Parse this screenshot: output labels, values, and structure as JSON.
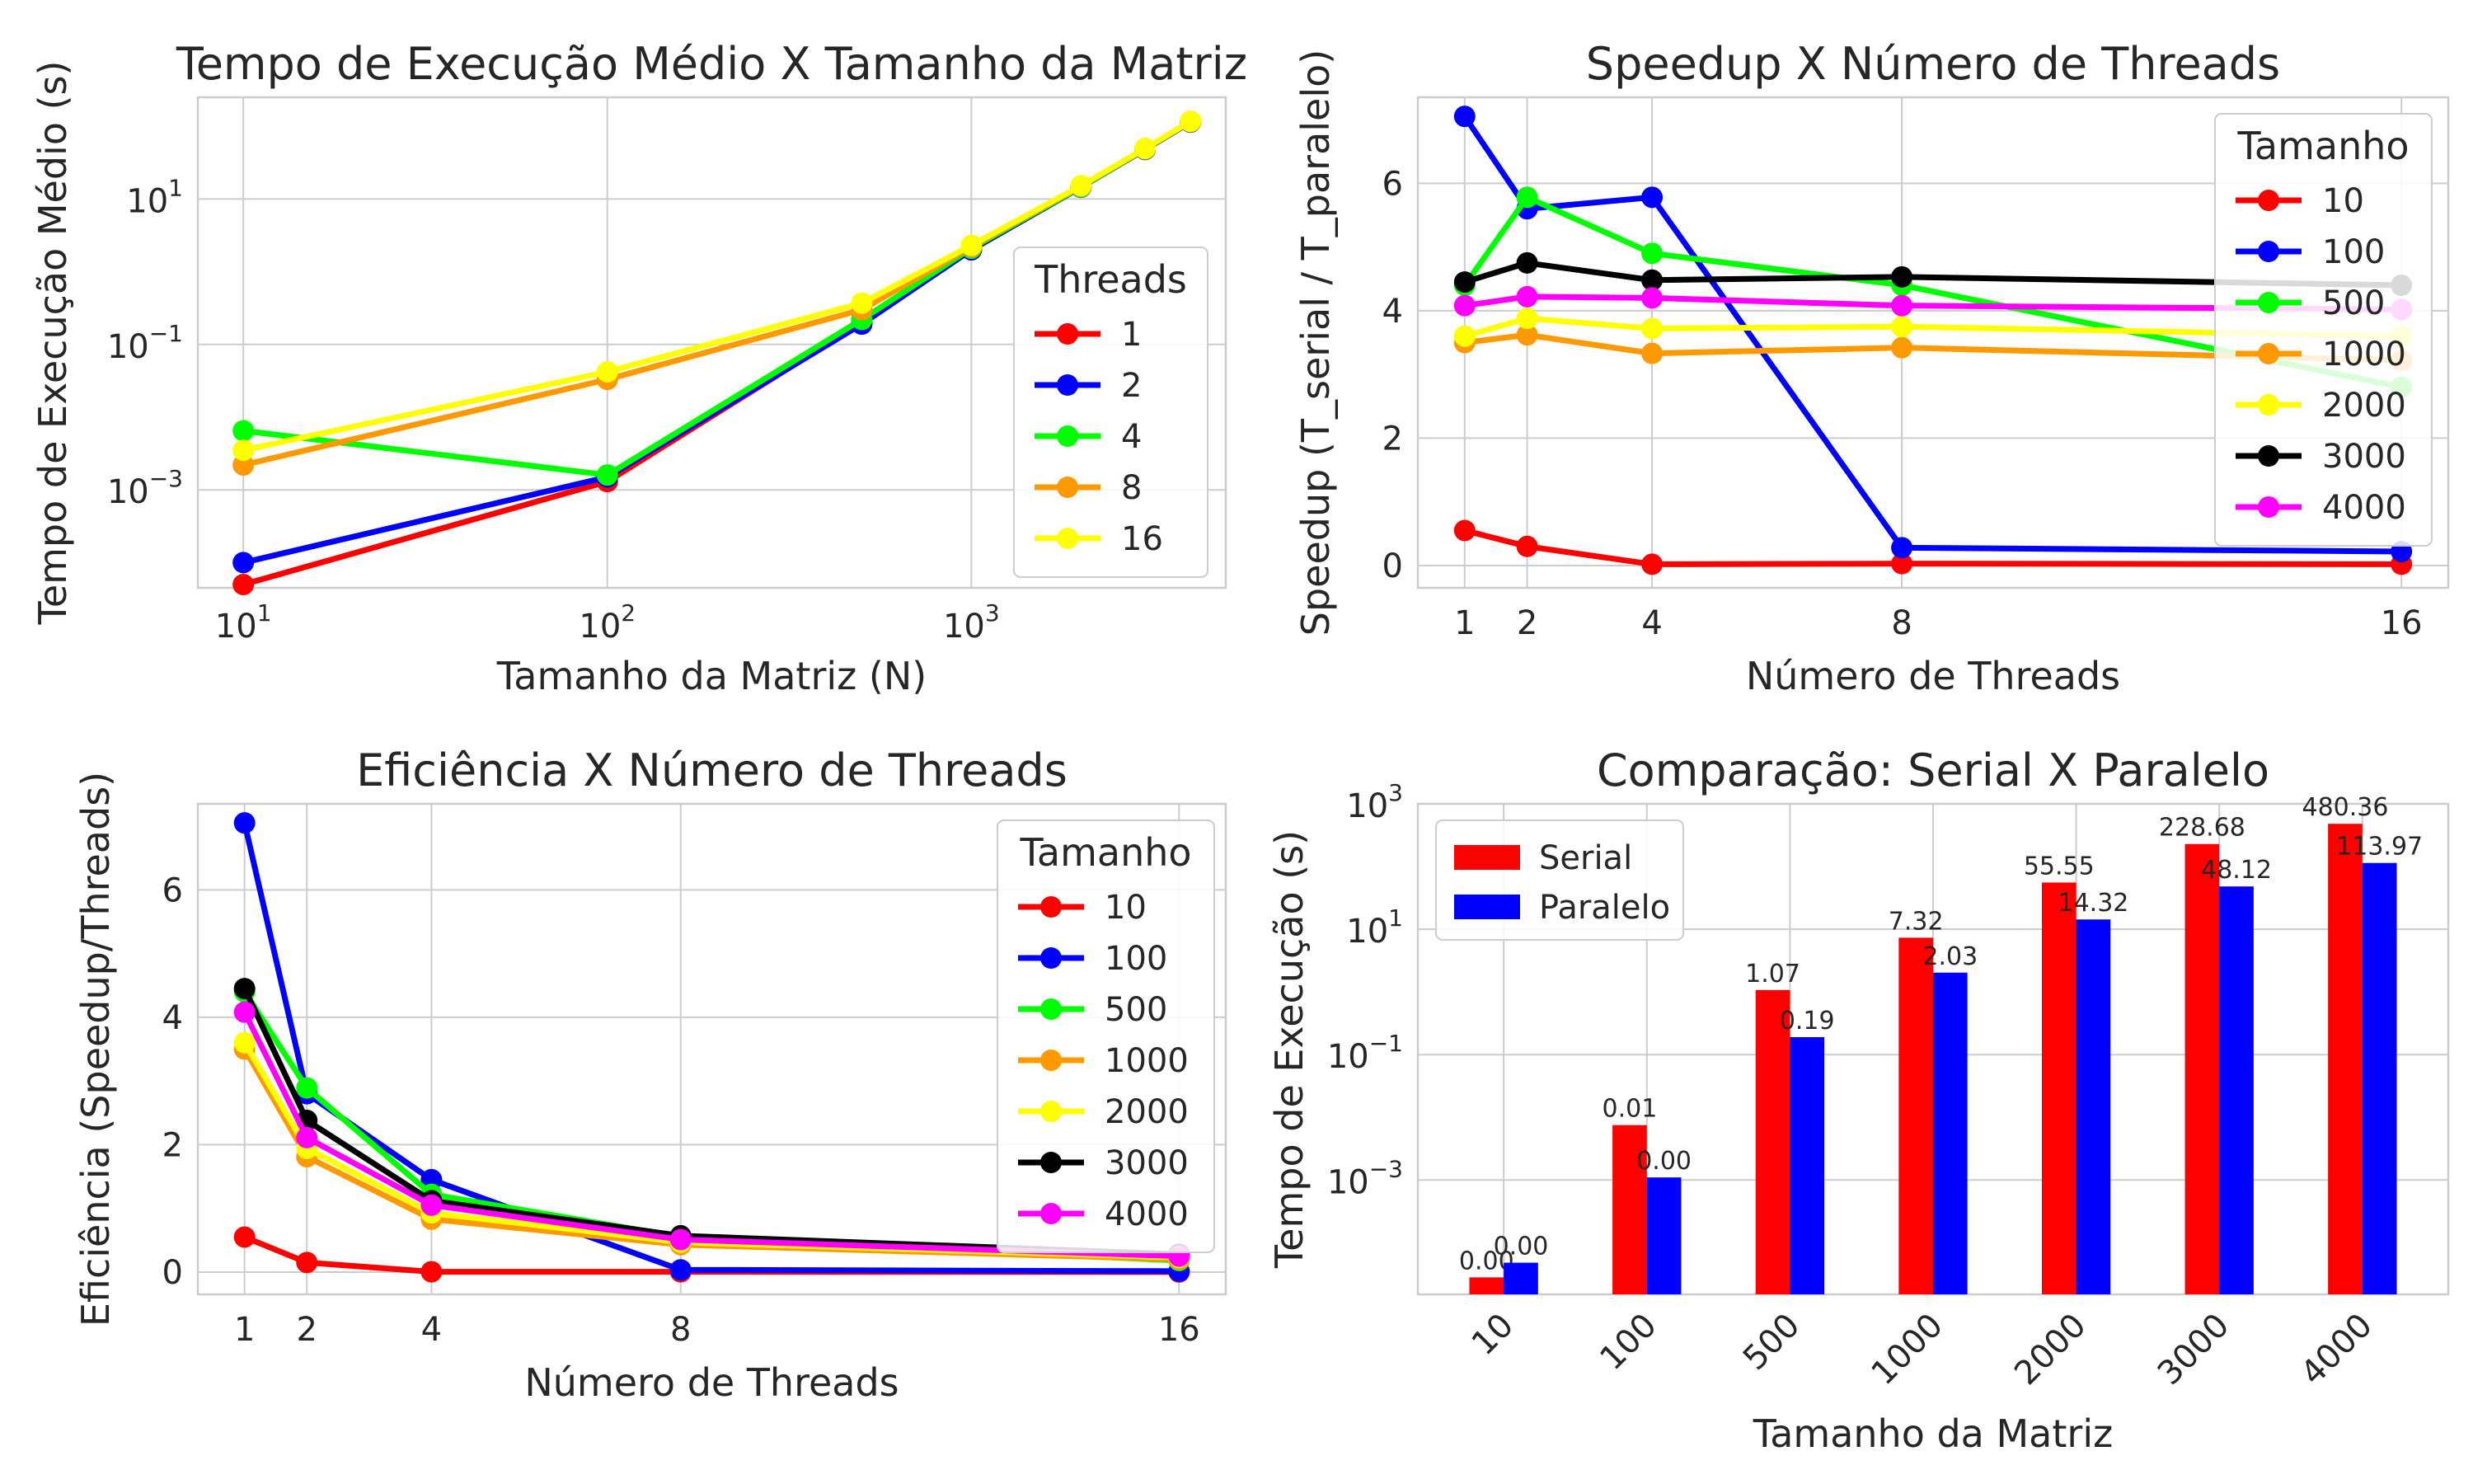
{
  "chart_data": [
    {
      "type": "line",
      "title": "Tempo de Execução Médio X Tamanho da Matriz",
      "xlabel": "Tamanho da Matriz (N)",
      "ylabel": "Tempo de Execução Médio (s)",
      "xscale": "log",
      "yscale": "log",
      "xlim": [
        7.5,
        5000
      ],
      "ylim": [
        4.5e-05,
        250
      ],
      "xticks": [
        {
          "value": 10,
          "base": "10",
          "exp": "1"
        },
        {
          "value": 100,
          "base": "10",
          "exp": "2"
        },
        {
          "value": 1000,
          "base": "10",
          "exp": "3"
        }
      ],
      "yticks": [
        {
          "value": 0.001,
          "base": "10",
          "exp": "−3"
        },
        {
          "value": 0.1,
          "base": "10",
          "exp": "−1"
        },
        {
          "value": 10,
          "base": "10",
          "exp": "1"
        }
      ],
      "grid": true,
      "legend": {
        "title": "Threads",
        "placement": "lower-right"
      },
      "x": [
        10,
        100,
        500,
        1000,
        2000,
        3000,
        4000
      ],
      "series": [
        {
          "name": "1",
          "color": "#ff0000",
          "values": [
            5e-05,
            0.0013,
            0.2,
            2.0,
            14.5,
            48,
            114
          ]
        },
        {
          "name": "2",
          "color": "#0000ff",
          "values": [
            0.0001,
            0.0015,
            0.19,
            2.0,
            14.5,
            48,
            114
          ]
        },
        {
          "name": "4",
          "color": "#00ff00",
          "values": [
            0.0065,
            0.0016,
            0.22,
            2.1,
            14.6,
            48.5,
            115
          ]
        },
        {
          "name": "8",
          "color": "#ff9900",
          "values": [
            0.0022,
            0.033,
            0.3,
            2.2,
            15,
            49,
            116
          ]
        },
        {
          "name": "16",
          "color": "#ffff00",
          "values": [
            0.0035,
            0.042,
            0.37,
            2.3,
            15.2,
            49.5,
            117
          ]
        }
      ]
    },
    {
      "type": "line",
      "title": "Speedup X Número de Threads",
      "xlabel": "Número de Threads",
      "ylabel": "Speedup (T_serial / T_paralelo)",
      "xlim": [
        0.25,
        16.75
      ],
      "ylim": [
        -0.35,
        7.35
      ],
      "xticks": [
        1,
        2,
        4,
        8,
        16
      ],
      "yticks": [
        0,
        2,
        4,
        6
      ],
      "grid": true,
      "legend": {
        "title": "Tamanho",
        "placement": "upper-right"
      },
      "x": [
        1,
        2,
        4,
        8,
        16
      ],
      "series": [
        {
          "name": "10",
          "color": "#ff0000",
          "values": [
            0.55,
            0.3,
            0.02,
            0.03,
            0.02
          ]
        },
        {
          "name": "100",
          "color": "#0000ff",
          "values": [
            7.05,
            5.6,
            5.78,
            0.28,
            0.22
          ]
        },
        {
          "name": "500",
          "color": "#00ff00",
          "values": [
            4.4,
            5.78,
            4.9,
            4.4,
            2.8
          ]
        },
        {
          "name": "1000",
          "color": "#ff9900",
          "values": [
            3.5,
            3.62,
            3.33,
            3.42,
            3.22
          ]
        },
        {
          "name": "2000",
          "color": "#ffff00",
          "values": [
            3.6,
            3.88,
            3.72,
            3.75,
            3.6
          ]
        },
        {
          "name": "3000",
          "color": "#000000",
          "values": [
            4.45,
            4.75,
            4.48,
            4.53,
            4.4
          ]
        },
        {
          "name": "4000",
          "color": "#ff00ff",
          "values": [
            4.08,
            4.22,
            4.2,
            4.08,
            4.02
          ]
        }
      ]
    },
    {
      "type": "line",
      "title": "Eficiência X Número de Threads",
      "xlabel": "Número de Threads",
      "ylabel": "Eficiência (Speedup/Threads)",
      "xlim": [
        0.25,
        16.75
      ],
      "ylim": [
        -0.35,
        7.35
      ],
      "xticks": [
        1,
        2,
        4,
        8,
        16
      ],
      "yticks": [
        0,
        2,
        4,
        6
      ],
      "grid": true,
      "legend": {
        "title": "Tamanho",
        "placement": "upper-right"
      },
      "x": [
        1,
        2,
        4,
        8,
        16
      ],
      "series": [
        {
          "name": "10",
          "color": "#ff0000",
          "values": [
            0.55,
            0.15,
            0.005,
            0.004,
            0.001
          ]
        },
        {
          "name": "100",
          "color": "#0000ff",
          "values": [
            7.05,
            2.8,
            1.45,
            0.035,
            0.014
          ]
        },
        {
          "name": "500",
          "color": "#00ff00",
          "values": [
            4.4,
            2.89,
            1.22,
            0.55,
            0.18
          ]
        },
        {
          "name": "1000",
          "color": "#ff9900",
          "values": [
            3.5,
            1.81,
            0.83,
            0.43,
            0.2
          ]
        },
        {
          "name": "2000",
          "color": "#ffff00",
          "values": [
            3.6,
            1.94,
            0.93,
            0.47,
            0.23
          ]
        },
        {
          "name": "3000",
          "color": "#000000",
          "values": [
            4.45,
            2.38,
            1.12,
            0.57,
            0.28
          ]
        },
        {
          "name": "4000",
          "color": "#ff00ff",
          "values": [
            4.08,
            2.11,
            1.05,
            0.51,
            0.25
          ]
        }
      ]
    },
    {
      "type": "bar",
      "title": "Comparação: Serial X Paralelo",
      "xlabel": "Tamanho da Matriz",
      "ylabel": "Tempo de Execução (s)",
      "yscale": "log",
      "ylim": [
        1.5e-05,
        1000
      ],
      "yticks": [
        {
          "value": 0.001,
          "base": "10",
          "exp": "−3"
        },
        {
          "value": 0.1,
          "base": "10",
          "exp": "−1"
        },
        {
          "value": 10,
          "base": "10",
          "exp": "1"
        },
        {
          "value": 1000,
          "base": "10",
          "exp": "3"
        }
      ],
      "grid": true,
      "legend": {
        "placement": "upper-left"
      },
      "categories": [
        "10",
        "100",
        "500",
        "1000",
        "2000",
        "3000",
        "4000"
      ],
      "series": [
        {
          "name": "Serial",
          "color": "#ff0000",
          "values": [
            2.8e-05,
            0.0075,
            1.07,
            7.32,
            55.55,
            228.68,
            480.36
          ],
          "labels": [
            "0.00",
            "0.01",
            "1.07",
            "7.32",
            "55.55",
            "228.68",
            "480.36"
          ]
        },
        {
          "name": "Paralelo",
          "color": "#0000ff",
          "values": [
            4.8e-05,
            0.0011,
            0.19,
            2.03,
            14.32,
            48.12,
            113.97
          ],
          "labels": [
            "0.00",
            "0.00",
            "0.19",
            "2.03",
            "14.32",
            "48.12",
            "113.97"
          ]
        }
      ]
    }
  ]
}
